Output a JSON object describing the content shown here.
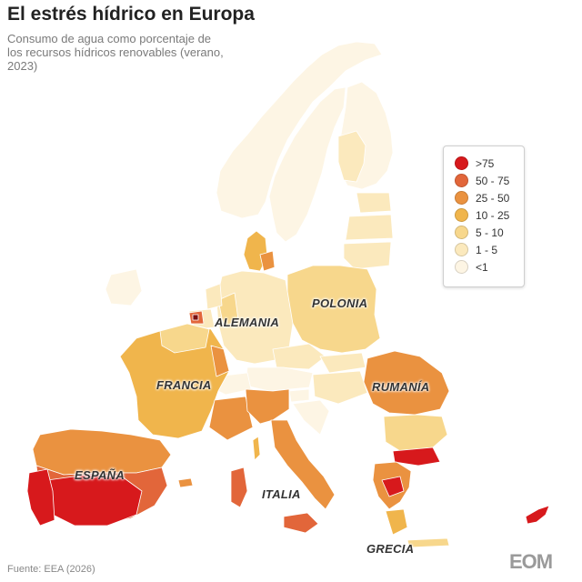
{
  "title": "El estrés hídrico en Europa",
  "subtitle": "Consumo de agua como porcentaje de los recursos hídricos renovables (verano, 2023)",
  "legend": {
    "items": [
      {
        "label": ">75",
        "color": "#d7191c"
      },
      {
        "label": "50 - 75",
        "color": "#e2663a"
      },
      {
        "label": "25 - 50",
        "color": "#ea9240"
      },
      {
        "label": "10 - 25",
        "color": "#f0b54c"
      },
      {
        "label": "5 - 10",
        "color": "#f7d78c"
      },
      {
        "label": "1 - 5",
        "color": "#fbe9bd"
      },
      {
        "label": "<1",
        "color": "#fdf5e4"
      }
    ]
  },
  "countries": {
    "polonia": "POLONIA",
    "alemania": "ALEMANIA",
    "rumania": "RUMANÍA",
    "francia": "FRANCIA",
    "espana": "ESPAÑA",
    "italia": "ITALIA",
    "grecia": "GRECIA"
  },
  "source": "Fuente: EEA (2026)",
  "logo": "EOM"
}
